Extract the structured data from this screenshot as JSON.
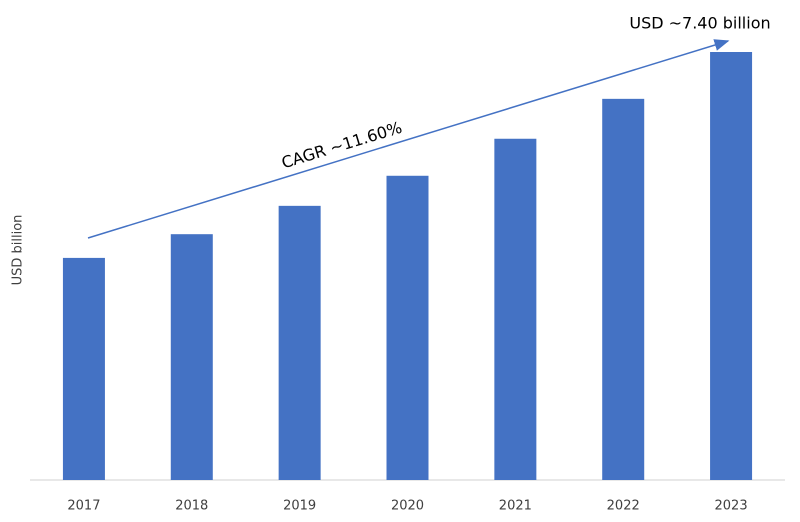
{
  "chart_data": {
    "type": "bar",
    "categories": [
      "2017",
      "2018",
      "2019",
      "2020",
      "2021",
      "2022",
      "2023"
    ],
    "values": [
      3.84,
      4.25,
      4.74,
      5.26,
      5.9,
      6.59,
      7.4
    ],
    "color": "#4472c4",
    "y_label": "USD billion",
    "annotations": [
      "CAGR ~11.60%",
      "USD ~7.40 billion"
    ]
  }
}
